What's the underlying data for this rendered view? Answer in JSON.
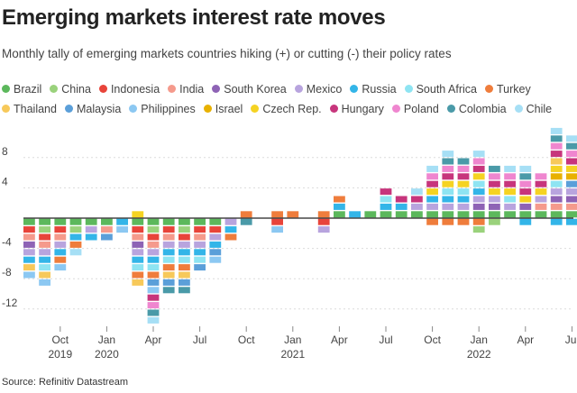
{
  "title": "Emerging markets interest rate moves",
  "subtitle": "Monthly tally of emerging markets countries hiking (+) or cutting (-) their policy rates",
  "source": "Source: Refinitiv Datastream",
  "chart_data": {
    "type": "bar",
    "stacked": true,
    "ylim": [
      -14,
      10
    ],
    "yticks": [
      -12,
      -8,
      -4,
      0,
      4,
      8
    ],
    "ytick_labels": [
      "-12",
      "-8",
      "-4",
      "",
      "4",
      "8"
    ],
    "x_start": "2019-08",
    "month_count": 36,
    "xtick_labels": [
      {
        "month_index": 2,
        "label": "Oct",
        "year": "2019"
      },
      {
        "month_index": 5,
        "label": "Jan",
        "year": "2020"
      },
      {
        "month_index": 8,
        "label": "Apr",
        "year": ""
      },
      {
        "month_index": 11,
        "label": "Jul",
        "year": ""
      },
      {
        "month_index": 14,
        "label": "Oct",
        "year": ""
      },
      {
        "month_index": 17,
        "label": "Jan",
        "year": "2021"
      },
      {
        "month_index": 20,
        "label": "Apr",
        "year": ""
      },
      {
        "month_index": 23,
        "label": "Jul",
        "year": ""
      },
      {
        "month_index": 26,
        "label": "Oct",
        "year": ""
      },
      {
        "month_index": 29,
        "label": "Jan",
        "year": "2022"
      },
      {
        "month_index": 32,
        "label": "Apr",
        "year": ""
      },
      {
        "month_index": 35,
        "label": "Jul",
        "year": ""
      }
    ],
    "series": [
      {
        "name": "Brazil",
        "color": "#5cb85c"
      },
      {
        "name": "China",
        "color": "#9ad27c"
      },
      {
        "name": "Indonesia",
        "color": "#e8443a"
      },
      {
        "name": "India",
        "color": "#f59a8c"
      },
      {
        "name": "South Korea",
        "color": "#8e63b5"
      },
      {
        "name": "Mexico",
        "color": "#b8a4de"
      },
      {
        "name": "Russia",
        "color": "#33b5e8"
      },
      {
        "name": "South Africa",
        "color": "#8ee4f2"
      },
      {
        "name": "Turkey",
        "color": "#ef7d3c"
      },
      {
        "name": "Thailand",
        "color": "#f7c95a"
      },
      {
        "name": "Malaysia",
        "color": "#5b9fd9"
      },
      {
        "name": "Philippines",
        "color": "#8cc8f2"
      },
      {
        "name": "Israel",
        "color": "#e8b100"
      },
      {
        "name": "Czech Rep.",
        "color": "#f5d322"
      },
      {
        "name": "Hungary",
        "color": "#c7357c"
      },
      {
        "name": "Poland",
        "color": "#ef86cf"
      },
      {
        "name": "Colombia",
        "color": "#4a9aa8"
      },
      {
        "name": "Chile",
        "color": "#a6dff5"
      }
    ],
    "months": [
      {
        "up": [],
        "down": [
          "Brazil",
          "Indonesia",
          "India",
          "South Korea",
          "Mexico",
          "Russia",
          "Thailand",
          "Philippines"
        ]
      },
      {
        "up": [],
        "down": [
          "Brazil",
          "China",
          "Indonesia",
          "India",
          "Mexico",
          "Russia",
          "South Africa",
          "Thailand",
          "Philippines"
        ]
      },
      {
        "up": [],
        "down": [
          "Brazil",
          "Indonesia",
          "India",
          "Mexico",
          "Russia",
          "Turkey",
          "Philippines"
        ]
      },
      {
        "up": [],
        "down": [
          "Brazil",
          "China",
          "Russia",
          "Turkey",
          "Chile"
        ]
      },
      {
        "up": [],
        "down": [
          "Brazil",
          "Mexico",
          "Russia"
        ]
      },
      {
        "up": [],
        "down": [
          "Brazil",
          "India",
          "Malaysia"
        ]
      },
      {
        "up": [],
        "down": [
          "Russia",
          "Philippines"
        ]
      },
      {
        "up": [
          "Czech Rep."
        ],
        "down": [
          "Brazil",
          "Indonesia",
          "India",
          "South Korea",
          "Mexico",
          "Russia",
          "South Africa",
          "Turkey",
          "Thailand"
        ]
      },
      {
        "up": [],
        "down": [
          "Brazil",
          "China",
          "Indonesia",
          "India",
          "Mexico",
          "Russia",
          "South Africa",
          "Turkey",
          "Malaysia",
          "Philippines",
          "Hungary",
          "Poland",
          "Colombia",
          "Chile"
        ]
      },
      {
        "up": [],
        "down": [
          "Brazil",
          "Indonesia",
          "India",
          "Mexico",
          "Russia",
          "South Africa",
          "Turkey",
          "Thailand",
          "Malaysia",
          "Colombia"
        ]
      },
      {
        "up": [],
        "down": [
          "Brazil",
          "China",
          "Indonesia",
          "Mexico",
          "Russia",
          "South Africa",
          "Turkey",
          "Thailand",
          "Malaysia",
          "Colombia"
        ]
      },
      {
        "up": [],
        "down": [
          "Brazil",
          "Indonesia",
          "India",
          "Mexico",
          "Russia",
          "South Africa",
          "Malaysia"
        ]
      },
      {
        "up": [],
        "down": [
          "Brazil",
          "Indonesia",
          "Mexico",
          "Russia",
          "Malaysia",
          "Philippines"
        ]
      },
      {
        "up": [],
        "down": [
          "Mexico",
          "Russia",
          "Turkey"
        ]
      },
      {
        "up": [
          "Turkey"
        ],
        "down": [
          "Colombia"
        ]
      },
      {
        "up": [],
        "down": []
      },
      {
        "up": [
          "Turkey"
        ],
        "down": [
          "Indonesia",
          "Philippines"
        ]
      },
      {
        "up": [
          "Turkey"
        ],
        "down": []
      },
      {
        "up": [],
        "down": []
      },
      {
        "up": [
          "Turkey"
        ],
        "down": [
          "Indonesia",
          "Mexico"
        ]
      },
      {
        "up": [
          "Brazil",
          "Russia",
          "Turkey"
        ],
        "down": []
      },
      {
        "up": [
          "Russia"
        ],
        "down": []
      },
      {
        "up": [
          "Brazil"
        ],
        "down": []
      },
      {
        "up": [
          "Brazil",
          "Russia",
          "South Africa",
          "Hungary"
        ],
        "down": []
      },
      {
        "up": [
          "Brazil",
          "Russia",
          "Hungary"
        ],
        "down": []
      },
      {
        "up": [
          "Brazil",
          "Mexico",
          "Hungary",
          "Chile"
        ],
        "down": []
      },
      {
        "up": [
          "Brazil",
          "Mexico",
          "Russia",
          "Czech Rep.",
          "Hungary",
          "Poland",
          "Chile"
        ],
        "down": [
          "Turkey"
        ]
      },
      {
        "up": [
          "Brazil",
          "Mexico",
          "Russia",
          "South Africa",
          "Czech Rep.",
          "Hungary",
          "Poland",
          "Colombia",
          "Chile"
        ],
        "down": [
          "Turkey"
        ]
      },
      {
        "up": [
          "Brazil",
          "Mexico",
          "Russia",
          "South Africa",
          "Czech Rep.",
          "Hungary",
          "Poland",
          "Colombia"
        ],
        "down": [
          "Turkey"
        ]
      },
      {
        "up": [
          "Brazil",
          "South Korea",
          "Mexico",
          "Russia",
          "South Africa",
          "Czech Rep.",
          "Hungary",
          "Poland",
          "Chile"
        ],
        "down": [
          "Turkey",
          "China"
        ]
      },
      {
        "up": [
          "Brazil",
          "South Korea",
          "Mexico",
          "Czech Rep.",
          "Hungary",
          "Poland",
          "Colombia"
        ],
        "down": [
          "China"
        ]
      },
      {
        "up": [
          "Brazil",
          "Mexico",
          "South Africa",
          "Czech Rep.",
          "Hungary",
          "Poland",
          "Chile"
        ],
        "down": []
      },
      {
        "up": [
          "Brazil",
          "South Korea",
          "Czech Rep.",
          "Hungary",
          "Poland",
          "Colombia",
          "Chile"
        ],
        "down": [
          "Russia"
        ]
      },
      {
        "up": [
          "Brazil",
          "India",
          "Mexico",
          "Czech Rep.",
          "Hungary",
          "Poland"
        ],
        "down": []
      },
      {
        "up": [
          "Brazil",
          "India",
          "South Korea",
          "Mexico",
          "South Africa",
          "Israel",
          "Czech Rep.",
          "Thailand",
          "Hungary",
          "Poland",
          "Colombia",
          "Chile"
        ],
        "down": [
          "Russia"
        ]
      },
      {
        "up": [
          "Brazil",
          "India",
          "South Korea",
          "Mexico",
          "Malaysia",
          "Israel",
          "Czech Rep.",
          "Hungary",
          "Poland",
          "Colombia",
          "Chile"
        ],
        "down": [
          "Russia"
        ]
      }
    ]
  }
}
